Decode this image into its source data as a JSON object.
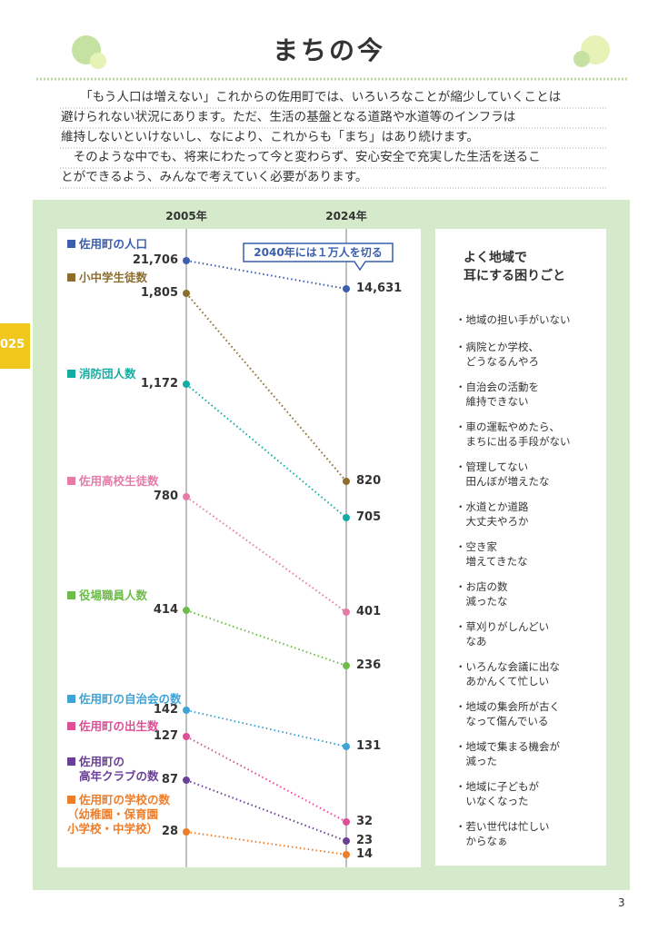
{
  "header": {
    "title": "まちの今",
    "side_tab": "025"
  },
  "intro": {
    "lines": [
      "「もう人口は増えない」これからの佐用町では、いろいろなことが縮少していくことは",
      "避けられない状況にあります。ただ、生活の基盤となる道路や水道等のインフラは",
      "維持しないといけないし、なにより、これからも「まち」はあり続けます。",
      "　そのような中でも、将来にわたって今と変わらず、安心安全で充実した生活を送るこ",
      "とができるよう、みんなで考えていく必要があります。"
    ]
  },
  "chart_data": {
    "type": "slope",
    "x": [
      "2005年",
      "2024年"
    ],
    "callout": "2040年には１万人を切る",
    "series": [
      {
        "name": "佐用町の人口",
        "color": "#3b5fae",
        "values": [
          21706,
          14631
        ],
        "value_labels": [
          "21,706",
          "14,631"
        ]
      },
      {
        "name": "小中学生徒数",
        "color": "#8c6d2c",
        "values": [
          1805,
          820
        ],
        "value_labels": [
          "1,805",
          "820"
        ]
      },
      {
        "name": "消防団人数",
        "color": "#11ada3",
        "values": [
          1172,
          705
        ],
        "value_labels": [
          "1,172",
          "705"
        ]
      },
      {
        "name": "佐用高校生徒数",
        "color": "#e67ba9",
        "values": [
          780,
          401
        ]
      },
      {
        "name": "役場職員人数",
        "color": "#6dbd49",
        "values": [
          414,
          236
        ]
      },
      {
        "name": "佐用町の自治会の数",
        "color": "#3ea3d7",
        "values": [
          142,
          131
        ]
      },
      {
        "name": "佐用町の出生数",
        "color": "#df4f98",
        "values": [
          127,
          32
        ]
      },
      {
        "name": "佐用町の\n高年クラブの数",
        "color": "#6a3f97",
        "values": [
          87,
          23
        ]
      },
      {
        "name": "佐用町の学校の数",
        "color": "#ee7d2a",
        "values": [
          28,
          14
        ],
        "note": "（幼稚園・保育園\n小学校・中学校）"
      }
    ]
  },
  "sidebar": {
    "title": "よく地域で\n耳にする困りごと",
    "items": [
      "・地域の担い手がいない",
      "・病院とか学校、\n　どうなるんやろ",
      "・自治会の活動を\n　維持できない",
      "・車の運転やめたら、\n　まちに出る手段がない",
      "・管理してない\n　田んぼが増えたな",
      "・水道とか道路\n　大丈夫やろか",
      "・空き家\n　増えてきたな",
      "・お店の数\n　減ったな",
      "・草刈りがしんどい\n　なあ",
      "・いろんな会議に出な\n　あかんくて忙しい",
      "・地域の集会所が古く\n　なって傷んでいる",
      "・地域で集まる機会が\n　減った",
      "・地域に子どもが\n　いなくなった",
      "・若い世代は忙しい\n　からなぁ"
    ]
  },
  "footer": {
    "page": "3"
  }
}
